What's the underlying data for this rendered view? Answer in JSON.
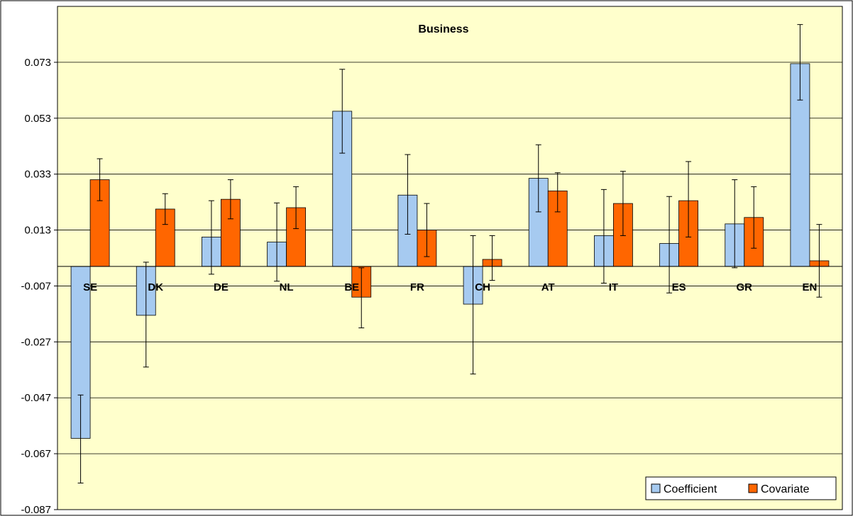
{
  "chart_data": {
    "type": "bar",
    "title": "Business",
    "xlabel": "",
    "ylabel": "",
    "ylim": [
      -0.087,
      0.093
    ],
    "yticks": [
      -0.087,
      -0.067,
      -0.047,
      -0.027,
      -0.007,
      0.013,
      0.033,
      0.053,
      0.073
    ],
    "ytick_labels": [
      "-0.087",
      "-0.067",
      "-0.047",
      "-0.027",
      "-0.007",
      "0.013",
      "0.033",
      "0.053",
      "0.073"
    ],
    "grid": true,
    "legend_position": "bottom-right",
    "categories": [
      "SE",
      "DK",
      "DE",
      "NL",
      "BE",
      "FR",
      "CH",
      "AT",
      "IT",
      "ES",
      "GR",
      "EN"
    ],
    "series": [
      {
        "name": "Coefficient",
        "color": "#a6caf0",
        "values": [
          -0.0615,
          -0.0175,
          0.0105,
          0.0087,
          0.0555,
          0.0255,
          -0.0135,
          0.0315,
          0.011,
          0.0082,
          0.0152,
          0.0725
        ],
        "error_low": [
          -0.0775,
          -0.036,
          -0.0028,
          -0.0053,
          0.0405,
          0.0115,
          -0.0385,
          0.0195,
          -0.006,
          -0.0095,
          -0.0005,
          0.0595
        ],
        "error_high": [
          -0.046,
          0.0015,
          0.0235,
          0.0227,
          0.0705,
          0.04,
          0.011,
          0.0435,
          0.0275,
          0.025,
          0.031,
          0.0865
        ]
      },
      {
        "name": "Covariate",
        "color": "#ff6600",
        "values": [
          0.031,
          0.0205,
          0.024,
          0.021,
          -0.011,
          0.013,
          0.0025,
          0.027,
          0.0225,
          0.0235,
          0.0175,
          0.002
        ],
        "error_low": [
          0.0235,
          0.015,
          0.017,
          0.0135,
          -0.022,
          0.0035,
          -0.005,
          0.0195,
          0.011,
          0.0105,
          0.0065,
          -0.011
        ],
        "error_high": [
          0.0385,
          0.026,
          0.031,
          0.0285,
          -0.0005,
          0.0225,
          0.011,
          0.0335,
          0.034,
          0.0375,
          0.0285,
          0.015
        ]
      }
    ]
  },
  "colors": {
    "plot_background": "#ffffcc",
    "gridline": "#000000",
    "frame": "#000000"
  }
}
